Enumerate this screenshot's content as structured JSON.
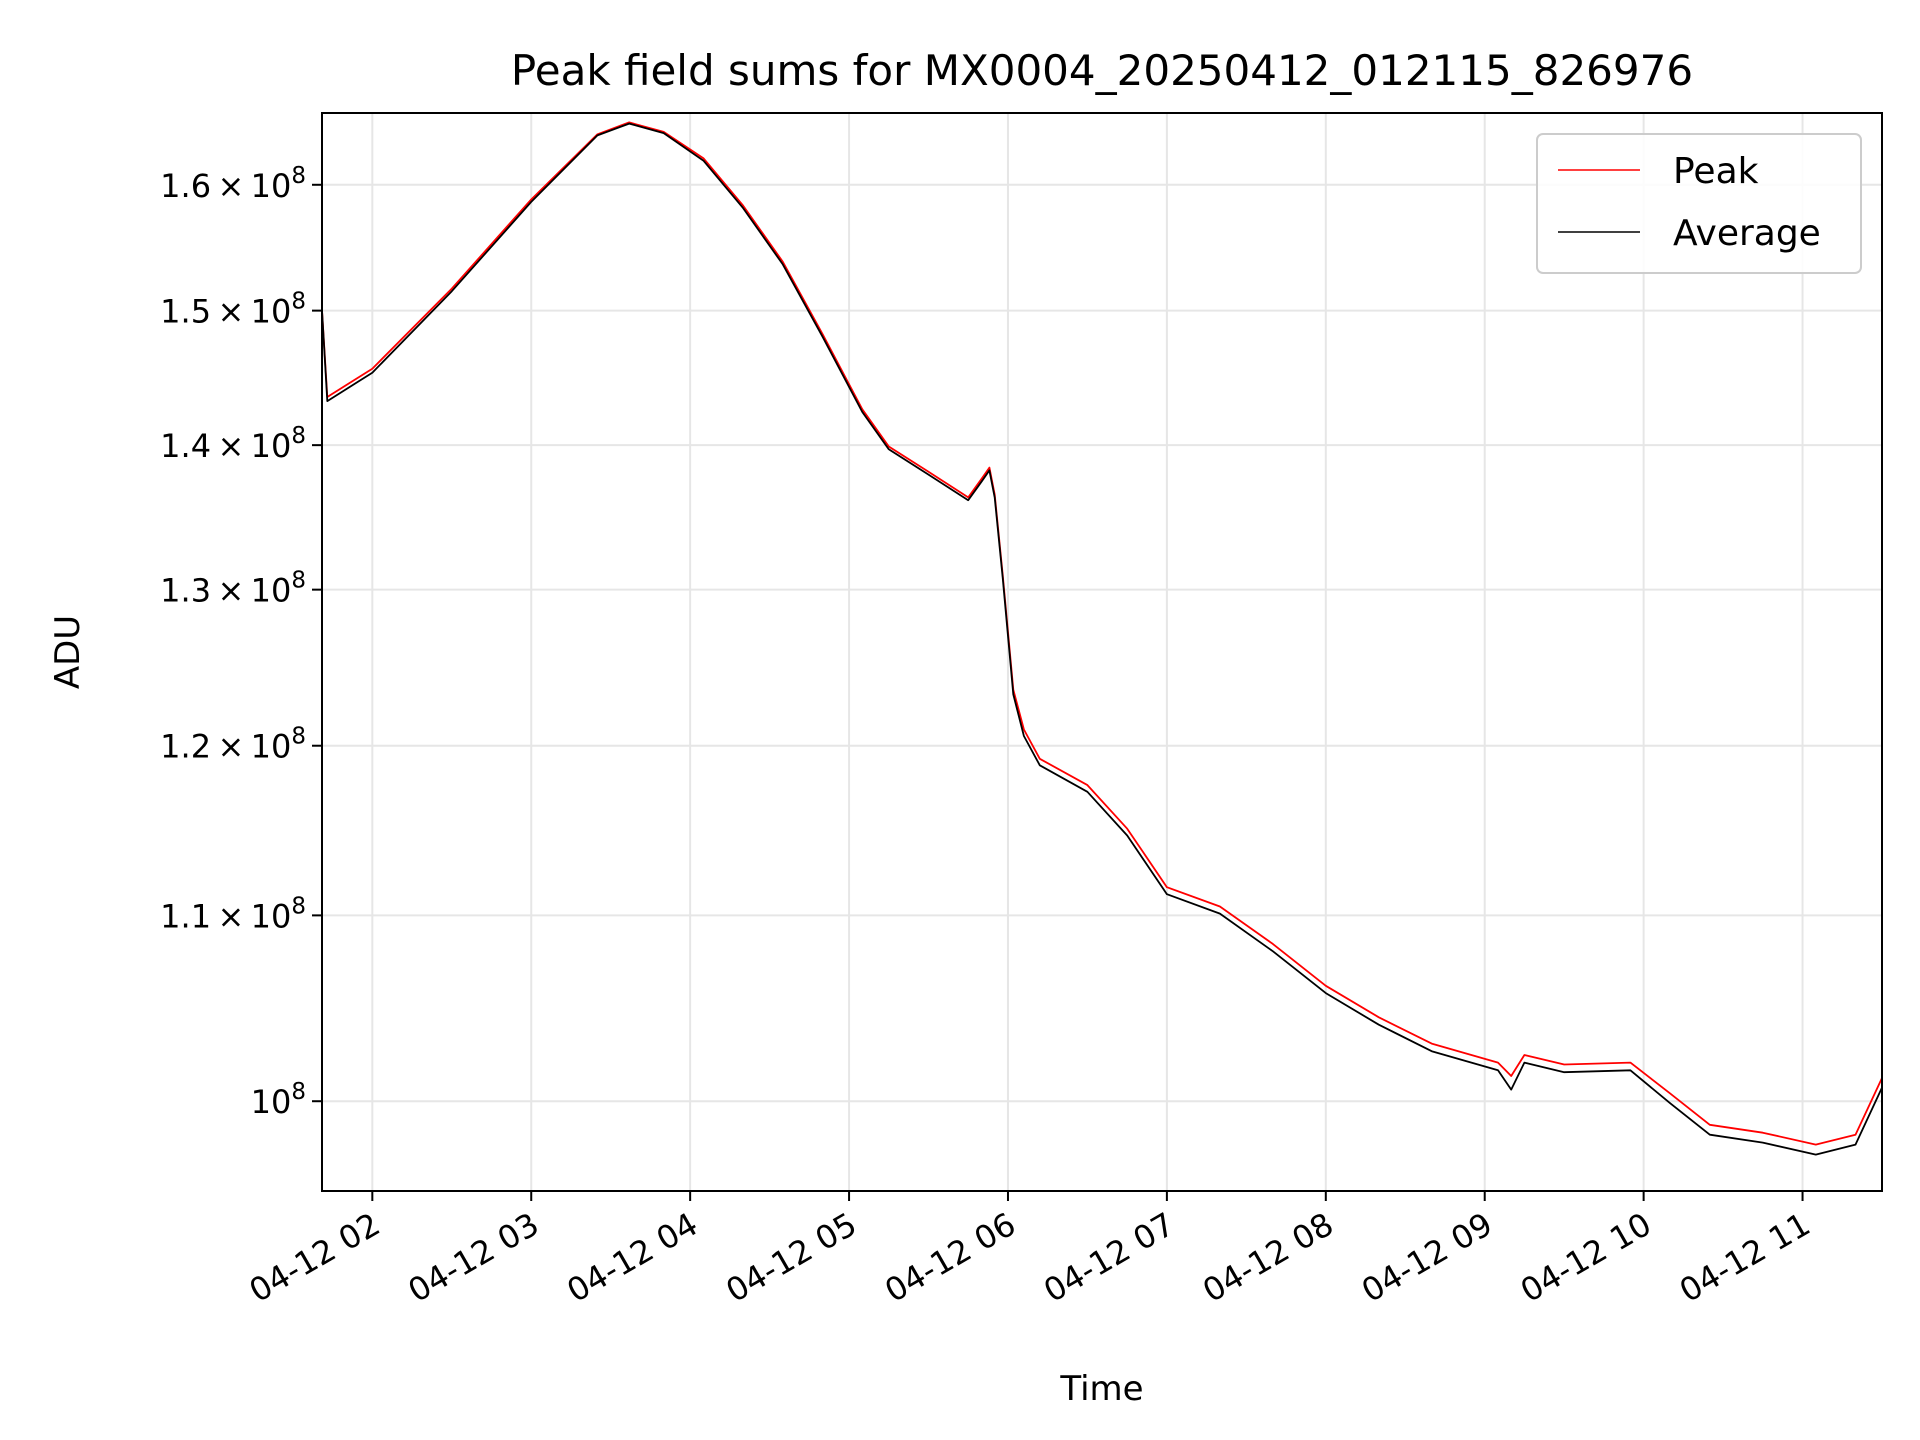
{
  "chart_data": {
    "type": "line",
    "title": "Peak field sums for MX0004_20250412_012115_826976",
    "xlabel": "Time",
    "ylabel": "ADU",
    "x_scale": "time",
    "y_scale": "log",
    "xlim": [
      "2025-04-12 01:41",
      "2025-04-12 11:30"
    ],
    "ylim": [
      95500000,
      166000000
    ],
    "grid": true,
    "legend_position": "top-right",
    "x_ticks": [
      {
        "value": "2025-04-12 02:00",
        "label": "04-12 02"
      },
      {
        "value": "2025-04-12 03:00",
        "label": "04-12 03"
      },
      {
        "value": "2025-04-12 04:00",
        "label": "04-12 04"
      },
      {
        "value": "2025-04-12 05:00",
        "label": "04-12 05"
      },
      {
        "value": "2025-04-12 06:00",
        "label": "04-12 06"
      },
      {
        "value": "2025-04-12 07:00",
        "label": "04-12 07"
      },
      {
        "value": "2025-04-12 08:00",
        "label": "04-12 08"
      },
      {
        "value": "2025-04-12 09:00",
        "label": "04-12 09"
      },
      {
        "value": "2025-04-12 10:00",
        "label": "04-12 10"
      },
      {
        "value": "2025-04-12 11:00",
        "label": "04-12 11"
      }
    ],
    "y_ticks": [
      {
        "value": 100000000,
        "mantissa": "",
        "exponent": "8"
      },
      {
        "value": 110000000,
        "mantissa": "1.1",
        "exponent": "8"
      },
      {
        "value": 120000000,
        "mantissa": "1.2",
        "exponent": "8"
      },
      {
        "value": 130000000,
        "mantissa": "1.3",
        "exponent": "8"
      },
      {
        "value": 140000000,
        "mantissa": "1.4",
        "exponent": "8"
      },
      {
        "value": 150000000,
        "mantissa": "1.5",
        "exponent": "8"
      },
      {
        "value": 160000000,
        "mantissa": "1.6",
        "exponent": "8"
      }
    ],
    "series": [
      {
        "name": "Peak",
        "color": "#ff0000",
        "points": [
          [
            "2025-04-12 01:41",
            150000000
          ],
          [
            "2025-04-12 01:43",
            143500000
          ],
          [
            "2025-04-12 02:00",
            145600000
          ],
          [
            "2025-04-12 02:30",
            151700000
          ],
          [
            "2025-04-12 03:00",
            158800000
          ],
          [
            "2025-04-12 03:25",
            164200000
          ],
          [
            "2025-04-12 03:37",
            165200000
          ],
          [
            "2025-04-12 03:50",
            164400000
          ],
          [
            "2025-04-12 04:05",
            162200000
          ],
          [
            "2025-04-12 04:20",
            158300000
          ],
          [
            "2025-04-12 04:35",
            153800000
          ],
          [
            "2025-04-12 04:50",
            148200000
          ],
          [
            "2025-04-12 05:05",
            142600000
          ],
          [
            "2025-04-12 05:15",
            139900000
          ],
          [
            "2025-04-12 05:30",
            138100000
          ],
          [
            "2025-04-12 05:45",
            136300000
          ],
          [
            "2025-04-12 05:50",
            137600000
          ],
          [
            "2025-04-12 05:53",
            138400000
          ],
          [
            "2025-04-12 05:55",
            136500000
          ],
          [
            "2025-04-12 05:58",
            131000000
          ],
          [
            "2025-04-12 06:02",
            123500000
          ],
          [
            "2025-04-12 06:06",
            121000000
          ],
          [
            "2025-04-12 06:12",
            119200000
          ],
          [
            "2025-04-12 06:30",
            117600000
          ],
          [
            "2025-04-12 06:45",
            115000000
          ],
          [
            "2025-04-12 07:00",
            111600000
          ],
          [
            "2025-04-12 07:20",
            110500000
          ],
          [
            "2025-04-12 07:40",
            108400000
          ],
          [
            "2025-04-12 08:00",
            106100000
          ],
          [
            "2025-04-12 08:20",
            104400000
          ],
          [
            "2025-04-12 08:40",
            103000000
          ],
          [
            "2025-04-12 09:05",
            102000000
          ],
          [
            "2025-04-12 09:10",
            101300000
          ],
          [
            "2025-04-12 09:15",
            102400000
          ],
          [
            "2025-04-12 09:30",
            101900000
          ],
          [
            "2025-04-12 09:55",
            102000000
          ],
          [
            "2025-04-12 10:10",
            100400000
          ],
          [
            "2025-04-12 10:25",
            98800000
          ],
          [
            "2025-04-12 10:45",
            98400000
          ],
          [
            "2025-04-12 11:05",
            97800000
          ],
          [
            "2025-04-12 11:20",
            98300000
          ],
          [
            "2025-04-12 11:30",
            101200000
          ]
        ]
      },
      {
        "name": "Average",
        "color": "#000000",
        "points": [
          [
            "2025-04-12 01:41",
            150000000
          ],
          [
            "2025-04-12 01:43",
            143200000
          ],
          [
            "2025-04-12 02:00",
            145300000
          ],
          [
            "2025-04-12 02:30",
            151500000
          ],
          [
            "2025-04-12 03:00",
            158600000
          ],
          [
            "2025-04-12 03:25",
            164100000
          ],
          [
            "2025-04-12 03:37",
            165100000
          ],
          [
            "2025-04-12 03:50",
            164300000
          ],
          [
            "2025-04-12 04:05",
            162000000
          ],
          [
            "2025-04-12 04:20",
            158100000
          ],
          [
            "2025-04-12 04:35",
            153600000
          ],
          [
            "2025-04-12 04:50",
            148000000
          ],
          [
            "2025-04-12 05:05",
            142400000
          ],
          [
            "2025-04-12 05:15",
            139700000
          ],
          [
            "2025-04-12 05:30",
            137900000
          ],
          [
            "2025-04-12 05:45",
            136100000
          ],
          [
            "2025-04-12 05:50",
            137400000
          ],
          [
            "2025-04-12 05:53",
            138200000
          ],
          [
            "2025-04-12 05:55",
            136300000
          ],
          [
            "2025-04-12 05:58",
            130800000
          ],
          [
            "2025-04-12 06:02",
            123200000
          ],
          [
            "2025-04-12 06:06",
            120600000
          ],
          [
            "2025-04-12 06:12",
            118800000
          ],
          [
            "2025-04-12 06:30",
            117200000
          ],
          [
            "2025-04-12 06:45",
            114600000
          ],
          [
            "2025-04-12 07:00",
            111200000
          ],
          [
            "2025-04-12 07:20",
            110100000
          ],
          [
            "2025-04-12 07:40",
            108000000
          ],
          [
            "2025-04-12 08:00",
            105700000
          ],
          [
            "2025-04-12 08:20",
            104000000
          ],
          [
            "2025-04-12 08:40",
            102600000
          ],
          [
            "2025-04-12 09:05",
            101600000
          ],
          [
            "2025-04-12 09:10",
            100600000
          ],
          [
            "2025-04-12 09:15",
            102000000
          ],
          [
            "2025-04-12 09:30",
            101500000
          ],
          [
            "2025-04-12 09:55",
            101600000
          ],
          [
            "2025-04-12 10:10",
            99900000
          ],
          [
            "2025-04-12 10:25",
            98300000
          ],
          [
            "2025-04-12 10:45",
            97900000
          ],
          [
            "2025-04-12 11:05",
            97300000
          ],
          [
            "2025-04-12 11:20",
            97800000
          ],
          [
            "2025-04-12 11:30",
            100700000
          ]
        ]
      }
    ]
  }
}
